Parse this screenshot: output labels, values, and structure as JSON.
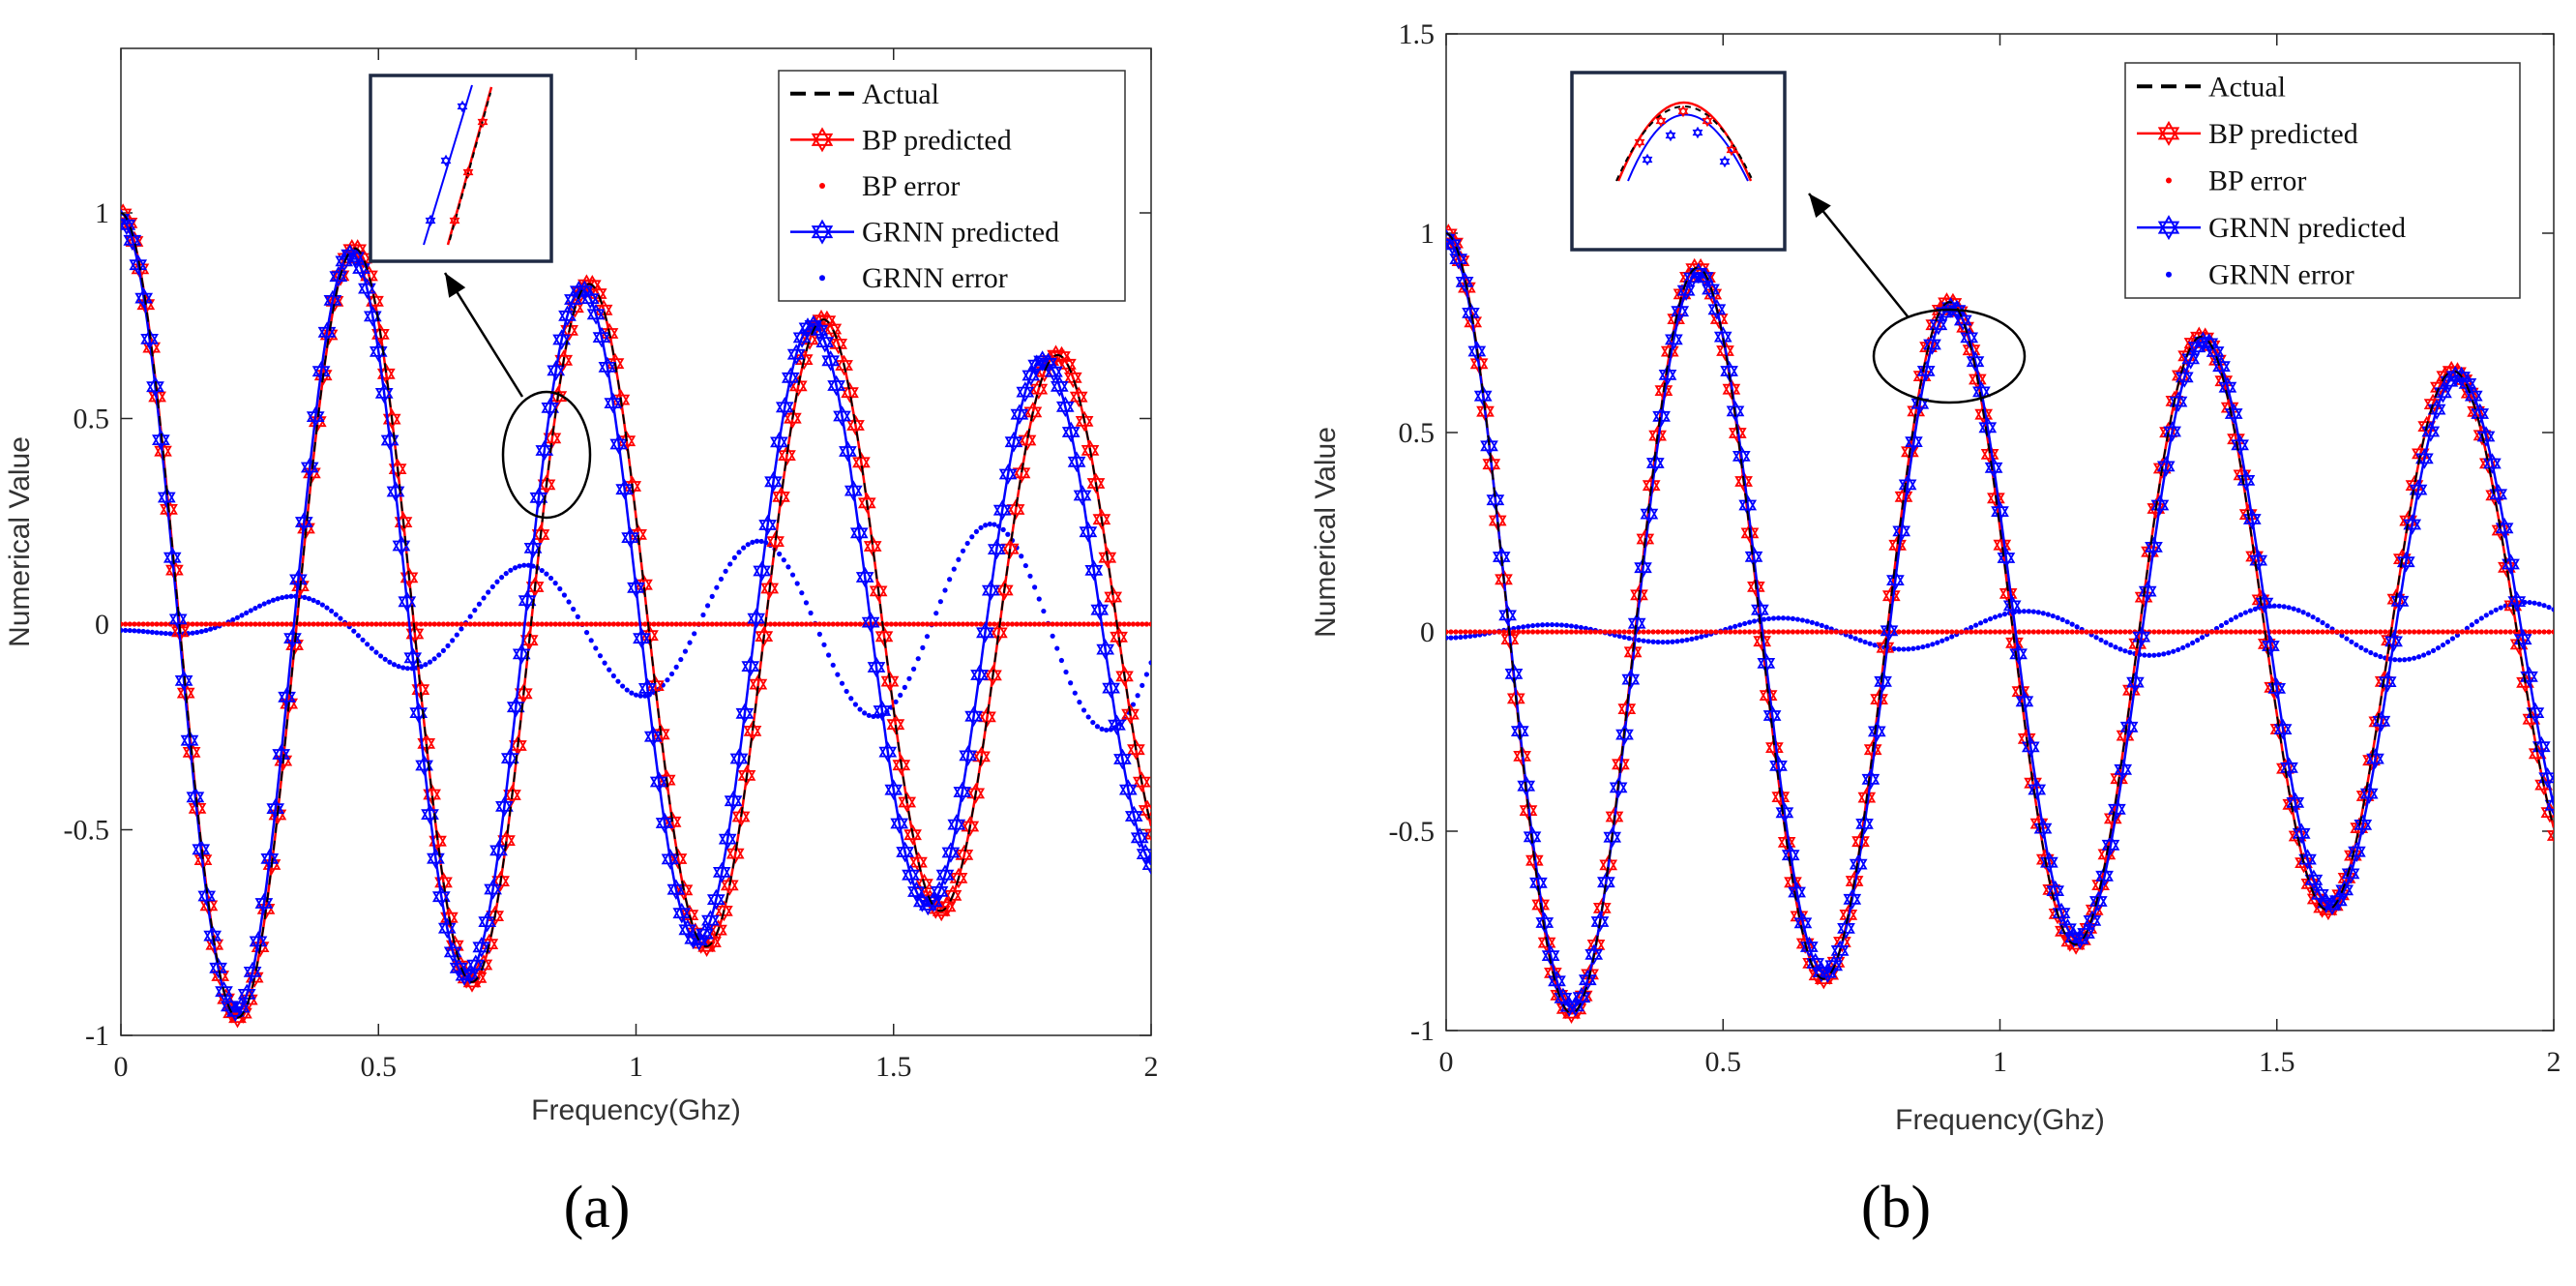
{
  "colors": {
    "actual": "#000000",
    "bp": "#ff0000",
    "grnn": "#0000ff",
    "axis": "#262626"
  },
  "chart_data": [
    {
      "type": "line",
      "panel_label": "(a)",
      "xlabel": "Frequency(Ghz)",
      "ylabel": "Numerical Value",
      "xlim": [
        0,
        2
      ],
      "ylim": [
        -1,
        1.4
      ],
      "xticks": [
        0,
        0.5,
        1,
        1.5,
        2
      ],
      "xtick_labels": [
        "0",
        "0.5",
        "1",
        "1.5",
        "2"
      ],
      "yticks": [
        -1,
        -0.5,
        0,
        0.5,
        1
      ],
      "ytick_labels": [
        "-1",
        "-0.5",
        "0",
        "0.5",
        "1"
      ],
      "legend": [
        "Actual",
        "BP predicted",
        "BP error",
        "GRNN predicted",
        "GRNN error"
      ],
      "legend_position": "top-right",
      "series_model": "damped cosine y = A(f)·cos(2π f / T), A decays from 1.0 at 0 Ghz to ~0.62 at 2 Ghz",
      "actual": {
        "period": 0.455,
        "amp_start": 1.0,
        "amp_end": 0.62
      },
      "bp_predicted": {
        "period": 0.455,
        "amp_start": 1.0,
        "amp_end": 0.62,
        "shift": 0.0
      },
      "grnn_predicted": {
        "period": 0.448,
        "amp_start": 0.985,
        "amp_end": 0.6,
        "shift": 0.0
      },
      "bp_error_approx": 0.0,
      "grnn_error_amplitude_end": 0.2,
      "inset": "zoom near x≈0.83, y≈0.5 showing GRNN curve offset left of BP/Actual"
    },
    {
      "type": "line",
      "panel_label": "(b)",
      "xlabel": "Frequency(Ghz)",
      "ylabel": "Numerical Value",
      "xlim": [
        0,
        2
      ],
      "ylim": [
        -1,
        1.5
      ],
      "xticks": [
        0,
        0.5,
        1,
        1.5,
        2
      ],
      "xtick_labels": [
        "0",
        "0.5",
        "1",
        "1.5",
        "2"
      ],
      "yticks": [
        -1,
        -0.5,
        0,
        0.5,
        1,
        1.5
      ],
      "ytick_labels": [
        "-1",
        "-0.5",
        "0",
        "0.5",
        "1",
        "1.5"
      ],
      "legend": [
        "Actual",
        "BP predicted",
        "BP error",
        "GRNN predicted",
        "GRNN error"
      ],
      "legend_position": "top-right",
      "series_model": "damped cosine y = A(f)·cos(2π f / T), A decays from 1.0 at 0 Ghz to ~0.62 at 2 Ghz",
      "actual": {
        "period": 0.455,
        "amp_start": 1.0,
        "amp_end": 0.62
      },
      "bp_predicted": {
        "period": 0.455,
        "amp_start": 1.0,
        "amp_end": 0.62,
        "shift": 0.0
      },
      "grnn_predicted": {
        "period": 0.457,
        "amp_start": 0.985,
        "amp_end": 0.61,
        "shift": 0.0
      },
      "bp_error_approx": 0.0,
      "grnn_error_amplitude_end": 0.08,
      "inset": "zoom near x≈0.9, y≈0.75 peak showing GRNN slightly below BP/Actual"
    }
  ]
}
